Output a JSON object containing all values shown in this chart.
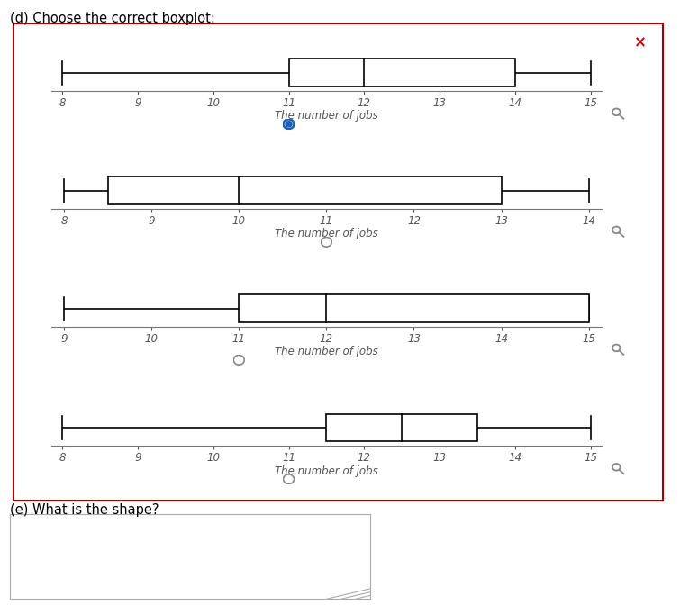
{
  "title": "(d) Choose the correct boxplot:",
  "boxplots": [
    {
      "whisker_low": 8,
      "q1": 11,
      "median": 12,
      "q3": 14,
      "whisker_high": 15,
      "xmin": 8,
      "xmax": 15,
      "xticks": [
        8,
        9,
        10,
        11,
        12,
        13,
        14,
        15
      ],
      "xlabel": "The number of jobs",
      "selected": true,
      "radio_tick": 11
    },
    {
      "whisker_low": 8,
      "q1": 8.5,
      "median": 10,
      "q3": 13,
      "whisker_high": 14,
      "xmin": 8,
      "xmax": 14,
      "xticks": [
        8,
        9,
        10,
        11,
        12,
        13,
        14
      ],
      "xlabel": "The number of jobs",
      "selected": false,
      "radio_tick": 11
    },
    {
      "whisker_low": 9,
      "q1": 11,
      "median": 12,
      "q3": 15,
      "whisker_high": 15,
      "xmin": 9,
      "xmax": 15,
      "xticks": [
        9,
        10,
        11,
        12,
        13,
        14,
        15
      ],
      "xlabel": "The number of jobs",
      "selected": false,
      "radio_tick": 11
    },
    {
      "whisker_low": 8,
      "q1": 11.5,
      "median": 12.5,
      "q3": 13.5,
      "whisker_high": 15,
      "xmin": 8,
      "xmax": 15,
      "xticks": [
        8,
        9,
        10,
        11,
        12,
        13,
        14,
        15
      ],
      "xlabel": "The number of jobs",
      "selected": false,
      "radio_tick": 11
    }
  ],
  "part_e_label": "(e) What is the shape?",
  "border_color": "#aa0000",
  "selected_color": "#1a5fb4",
  "unselected_color": "#888888",
  "close_color": "#cc0000",
  "box_facecolor": "white",
  "box_edgecolor": "black",
  "whisker_color": "black",
  "axis_color": "#777777",
  "tick_color": "#555555",
  "label_color": "#555555"
}
